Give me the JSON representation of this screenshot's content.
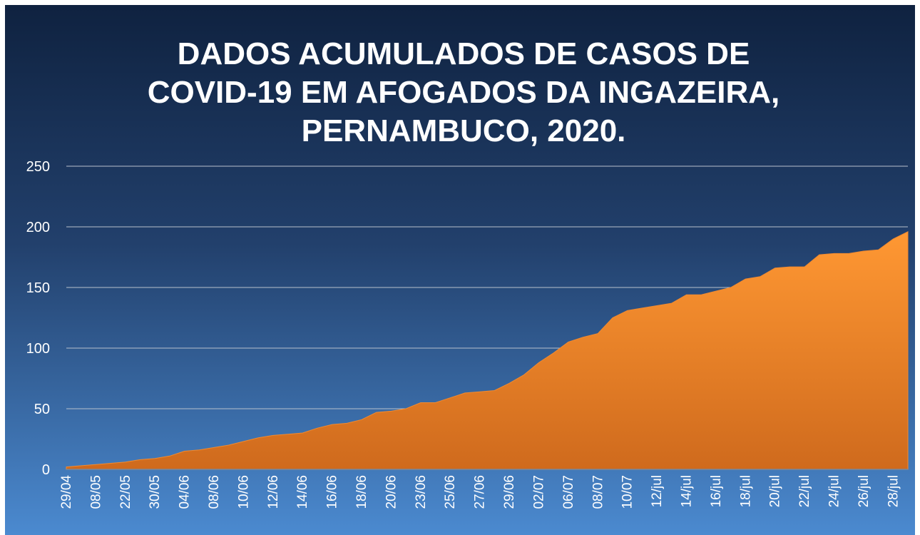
{
  "chart_data": {
    "type": "area",
    "title": [
      "DADOS ACUMULADOS DE CASOS DE",
      "COVID-19 EM AFOGADOS DA INGAZEIRA,",
      "PERNAMBUCO, 2020."
    ],
    "categories": [
      "29/04",
      null,
      "08/05",
      null,
      "22/05",
      null,
      "30/05",
      null,
      "04/06",
      null,
      "08/06",
      null,
      "10/06",
      null,
      "12/06",
      null,
      "14/06",
      null,
      "16/06",
      null,
      "18/06",
      null,
      "20/06",
      null,
      "23/06",
      null,
      "25/06",
      null,
      "27/06",
      null,
      "29/06",
      null,
      "02/07",
      null,
      "06/07",
      null,
      "08/07",
      null,
      "10/07",
      null,
      "12/jul",
      null,
      "14/jul",
      null,
      "16/jul",
      null,
      "18/jul",
      null,
      "20/jul",
      null,
      "22/jul",
      null,
      "24/jul",
      null,
      "26/jul",
      null,
      "28/jul",
      null
    ],
    "values": [
      2,
      3,
      4,
      5,
      6,
      8,
      9,
      11,
      15,
      16,
      18,
      20,
      23,
      26,
      28,
      29,
      30,
      34,
      37,
      38,
      41,
      47,
      48,
      50,
      55,
      55,
      59,
      63,
      64,
      65,
      71,
      78,
      88,
      96,
      105,
      109,
      112,
      125,
      131,
      133,
      135,
      137,
      144,
      144,
      147,
      150,
      157,
      159,
      166,
      167,
      167,
      177,
      178,
      178,
      180,
      181,
      190,
      196
    ],
    "color": "#f28a2e",
    "ylim": [
      0,
      250
    ],
    "yticks": [
      0,
      50,
      100,
      150,
      200,
      250
    ],
    "grid": true
  }
}
